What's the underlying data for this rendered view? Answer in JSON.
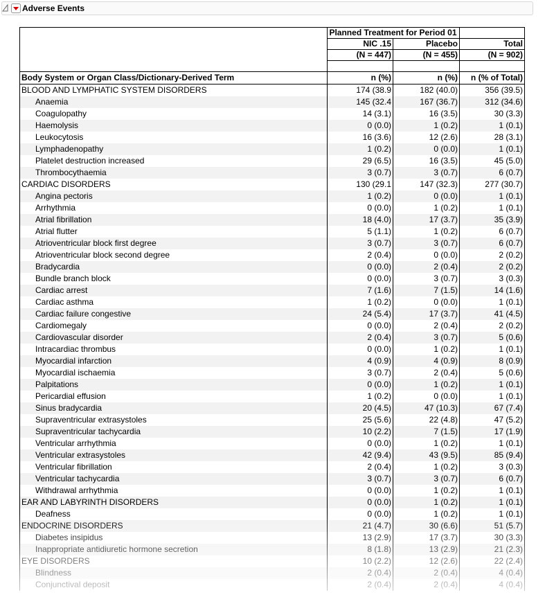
{
  "header": {
    "title": "Adverse Events"
  },
  "table": {
    "group_header": "Planned Treatment for Period 01",
    "columns": [
      "NIC .15",
      "Placebo",
      "Total"
    ],
    "counts": [
      "(N = 447)",
      "(N = 455)",
      "(N = 902)"
    ],
    "row_header": "Body System or Organ Class/Dictionary-Derived Term",
    "stat_headers": [
      "n (%)",
      "n (%)",
      "n (% of Total)"
    ],
    "rows": [
      [
        "BLOOD AND LYMPHATIC SYSTEM DISORDERS",
        "174 (38.9",
        "182 (40.0)",
        "356 (39.5)"
      ],
      [
        "Anaemia",
        "145 (32.4",
        "167 (36.7)",
        "312 (34.6)"
      ],
      [
        "Coagulopathy",
        "14 (3.1)",
        "16 (3.5)",
        "30 (3.3)"
      ],
      [
        "Haemolysis",
        "0 (0.0)",
        "1 (0.2)",
        "1 (0.1)"
      ],
      [
        "Leukocytosis",
        "16 (3.6)",
        "12 (2.6)",
        "28 (3.1)"
      ],
      [
        "Lymphadenopathy",
        "1 (0.2)",
        "0 (0.0)",
        "1 (0.1)"
      ],
      [
        "Platelet destruction increased",
        "29 (6.5)",
        "16 (3.5)",
        "45 (5.0)"
      ],
      [
        "Thrombocythaemia",
        "3 (0.7)",
        "3 (0.7)",
        "6 (0.7)"
      ],
      [
        "CARDIAC DISORDERS",
        "130 (29.1",
        "147 (32.3)",
        "277 (30.7)"
      ],
      [
        "Angina pectoris",
        "1 (0.2)",
        "0 (0.0)",
        "1 (0.1)"
      ],
      [
        "Arrhythmia",
        "0 (0.0)",
        "1 (0.2)",
        "1 (0.1)"
      ],
      [
        "Atrial fibrillation",
        "18 (4.0)",
        "17 (3.7)",
        "35 (3.9)"
      ],
      [
        "Atrial flutter",
        "5 (1.1)",
        "1 (0.2)",
        "6 (0.7)"
      ],
      [
        "Atrioventricular block first degree",
        "3 (0.7)",
        "3 (0.7)",
        "6 (0.7)"
      ],
      [
        "Atrioventricular block second degree",
        "2 (0.4)",
        "0 (0.0)",
        "2 (0.2)"
      ],
      [
        "Bradycardia",
        "0 (0.0)",
        "2 (0.4)",
        "2 (0.2)"
      ],
      [
        "Bundle branch block",
        "0 (0.0)",
        "3 (0.7)",
        "3 (0.3)"
      ],
      [
        "Cardiac arrest",
        "7 (1.6)",
        "7 (1.5)",
        "14 (1.6)"
      ],
      [
        "Cardiac asthma",
        "1 (0.2)",
        "0 (0.0)",
        "1 (0.1)"
      ],
      [
        "Cardiac failure congestive",
        "24 (5.4)",
        "17 (3.7)",
        "41 (4.5)"
      ],
      [
        "Cardiomegaly",
        "0 (0.0)",
        "2 (0.4)",
        "2 (0.2)"
      ],
      [
        "Cardiovascular disorder",
        "2 (0.4)",
        "3 (0.7)",
        "5 (0.6)"
      ],
      [
        "Intracardiac thrombus",
        "0 (0.0)",
        "1 (0.2)",
        "1 (0.1)"
      ],
      [
        "Myocardial infarction",
        "4 (0.9)",
        "4 (0.9)",
        "8 (0.9)"
      ],
      [
        "Myocardial ischaemia",
        "3 (0.7)",
        "2 (0.4)",
        "5 (0.6)"
      ],
      [
        "Palpitations",
        "0 (0.0)",
        "1 (0.2)",
        "1 (0.1)"
      ],
      [
        "Pericardial effusion",
        "1 (0.2)",
        "0 (0.0)",
        "1 (0.1)"
      ],
      [
        "Sinus bradycardia",
        "20 (4.5)",
        "47 (10.3)",
        "67 (7.4)"
      ],
      [
        "Supraventricular extrasystoles",
        "25 (5.6)",
        "22 (4.8)",
        "47 (5.2)"
      ],
      [
        "Supraventricular tachycardia",
        "10 (2.2)",
        "7 (1.5)",
        "17 (1.9)"
      ],
      [
        "Ventricular arrhythmia",
        "0 (0.0)",
        "1 (0.2)",
        "1 (0.1)"
      ],
      [
        "Ventricular extrasystoles",
        "42 (9.4)",
        "43 (9.5)",
        "85 (9.4)"
      ],
      [
        "Ventricular fibrillation",
        "2 (0.4)",
        "1 (0.2)",
        "3 (0.3)"
      ],
      [
        "Ventricular tachycardia",
        "3 (0.7)",
        "3 (0.7)",
        "6 (0.7)"
      ],
      [
        "Withdrawal arrhythmia",
        "0 (0.0)",
        "1 (0.2)",
        "1 (0.1)"
      ],
      [
        "EAR AND LABYRINTH DISORDERS",
        "0 (0.0)",
        "1 (0.2)",
        "1 (0.1)"
      ],
      [
        "Deafness",
        "0 (0.0)",
        "1 (0.2)",
        "1 (0.1)"
      ],
      [
        "ENDOCRINE DISORDERS",
        "21 (4.7)",
        "30 (6.6)",
        "51 (5.7)"
      ],
      [
        "Diabetes insipidus",
        "13 (2.9)",
        "17 (3.7)",
        "30 (3.3)"
      ],
      [
        "Inappropriate antidiuretic hormone secretion",
        "8 (1.8)",
        "13 (2.9)",
        "21 (2.3)"
      ],
      [
        "EYE DISORDERS",
        "10 (2.2)",
        "12 (2.6)",
        "22 (2.4)"
      ],
      [
        "Blindness",
        "2 (0.4)",
        "2 (0.4)",
        "4 (0.4)"
      ],
      [
        "Conjunctival deposit",
        "2 (0.4)",
        "2 (0.4)",
        "4 (0.4)"
      ]
    ]
  }
}
